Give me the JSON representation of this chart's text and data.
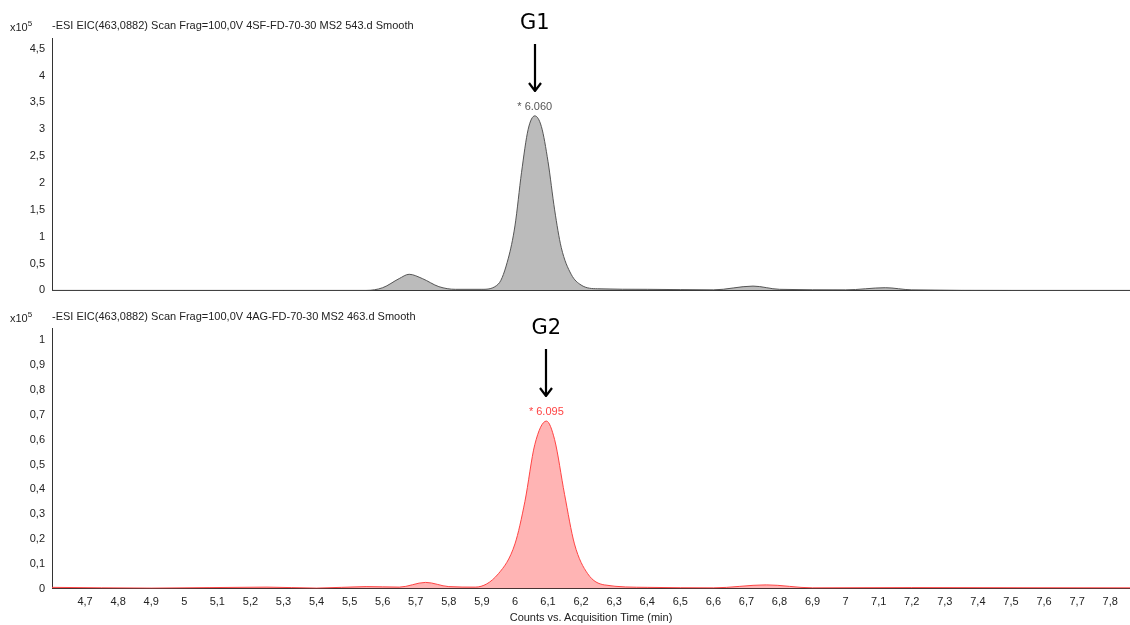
{
  "chart_data": [
    {
      "type": "area",
      "title": "-ESI EIC(463,0882) Scan Frag=100,0V 4SF-FD-70-30 MS2 543.d  Smooth",
      "ylabel": "x10$^{5}$",
      "series": [
        {
          "color": "#555555",
          "x": [
            4.6,
            5.0,
            5.3,
            5.55,
            5.6,
            5.65,
            5.68,
            5.72,
            5.77,
            5.82,
            5.9,
            5.95,
            5.98,
            6.0,
            6.02,
            6.04,
            6.06,
            6.08,
            6.1,
            6.12,
            6.14,
            6.17,
            6.2,
            6.25,
            6.4,
            6.6,
            6.72,
            6.8,
            7.0,
            7.12,
            7.2,
            7.5,
            7.86
          ],
          "values": [
            0,
            0,
            0,
            0,
            0.05,
            0.22,
            0.3,
            0.22,
            0.07,
            0.02,
            0.02,
            0.12,
            0.6,
            1.2,
            2.2,
            3.0,
            3.25,
            3.05,
            2.4,
            1.5,
            0.8,
            0.3,
            0.1,
            0.03,
            0.02,
            0.01,
            0.08,
            0.02,
            0.01,
            0.05,
            0.01,
            0,
            0
          ]
        }
      ],
      "xlim": [
        4.6,
        7.86
      ],
      "ylim": [
        0,
        4.7
      ],
      "yticks": [
        0,
        {
          "value": 0.5,
          "label": "0,5"
        },
        1,
        {
          "value": 1.5,
          "label": "1,5"
        },
        2,
        {
          "value": 2.5,
          "label": "2,5"
        },
        3,
        {
          "value": 3.5,
          "label": "3,5"
        },
        4,
        {
          "value": 4.5,
          "label": "4,5"
        }
      ],
      "tick_labels": "y",
      "annotations": [
        {
          "text": "* 6.060",
          "x": 6.06,
          "y": 3.25
        },
        "G1"
      ]
    },
    {
      "type": "area",
      "title": "-ESI EIC(463,0882) Scan Frag=100,0V 4AG-FD-70-30 MS2 463.d  Smooth",
      "ylabel": "x10$^{5}$",
      "xlabel": "Counts vs. Acquisition Time (min)",
      "series": [
        {
          "color": "#ff4444",
          "x": [
            4.6,
            4.9,
            5.25,
            5.4,
            5.55,
            5.65,
            5.73,
            5.8,
            5.88,
            5.95,
            6.0,
            6.03,
            6.06,
            6.095,
            6.12,
            6.15,
            6.18,
            6.22,
            6.27,
            6.4,
            6.6,
            6.76,
            6.9,
            7.2,
            7.86
          ],
          "values": [
            0.005,
            0.002,
            0.006,
            0.002,
            0.008,
            0.006,
            0.025,
            0.008,
            0.006,
            0.06,
            0.18,
            0.35,
            0.58,
            0.675,
            0.6,
            0.38,
            0.18,
            0.06,
            0.015,
            0.005,
            0.003,
            0.015,
            0.003,
            0.004,
            0.003
          ]
        }
      ],
      "xlim": [
        4.6,
        7.86
      ],
      "ylim": [
        0,
        1.05
      ],
      "xticks": [
        {
          "value": 4.7,
          "label": "4,7"
        },
        {
          "value": 4.8,
          "label": "4,8"
        },
        {
          "value": 4.9,
          "label": "4,9"
        },
        5,
        {
          "value": 5.1,
          "label": "5,1"
        },
        {
          "value": 5.2,
          "label": "5,2"
        },
        {
          "value": 5.3,
          "label": "5,3"
        },
        {
          "value": 5.4,
          "label": "5,4"
        },
        {
          "value": 5.5,
          "label": "5,5"
        },
        {
          "value": 5.6,
          "label": "5,6"
        },
        {
          "value": 5.7,
          "label": "5,7"
        },
        {
          "value": 5.8,
          "label": "5,8"
        },
        {
          "value": 5.9,
          "label": "5,9"
        },
        6,
        {
          "value": 6.1,
          "label": "6,1"
        },
        {
          "value": 6.2,
          "label": "6,2"
        },
        {
          "value": 6.3,
          "label": "6,3"
        },
        {
          "value": 6.4,
          "label": "6,4"
        },
        {
          "value": 6.5,
          "label": "6,5"
        },
        {
          "value": 6.6,
          "label": "6,6"
        },
        {
          "value": 6.7,
          "label": "6,7"
        },
        {
          "value": 6.8,
          "label": "6,8"
        },
        {
          "value": 6.9,
          "label": "6,9"
        },
        7,
        {
          "value": 7.1,
          "label": "7,1"
        },
        {
          "value": 7.2,
          "label": "7,2"
        },
        {
          "value": 7.3,
          "label": "7,3"
        },
        {
          "value": 7.4,
          "label": "7,4"
        },
        {
          "value": 7.5,
          "label": "7,5"
        },
        {
          "value": 7.6,
          "label": "7,6"
        },
        {
          "value": 7.7,
          "label": "7,7"
        },
        {
          "value": 7.8,
          "label": "7,8"
        }
      ],
      "yticks": [
        0,
        {
          "value": 0.1,
          "label": "0,1"
        },
        {
          "value": 0.2,
          "label": "0,2"
        },
        {
          "value": 0.3,
          "label": "0,3"
        },
        {
          "value": 0.4,
          "label": "0,4"
        },
        {
          "value": 0.5,
          "label": "0,5"
        },
        {
          "value": 0.6,
          "label": "0,6"
        },
        {
          "value": 0.7,
          "label": "0,7"
        },
        {
          "value": 0.8,
          "label": "0,8"
        },
        {
          "value": 0.9,
          "label": "0,9"
        },
        1
      ],
      "annotations": [
        {
          "text": "* 6.095",
          "x": 6.095,
          "y": 0.675
        },
        "G2"
      ]
    }
  ]
}
